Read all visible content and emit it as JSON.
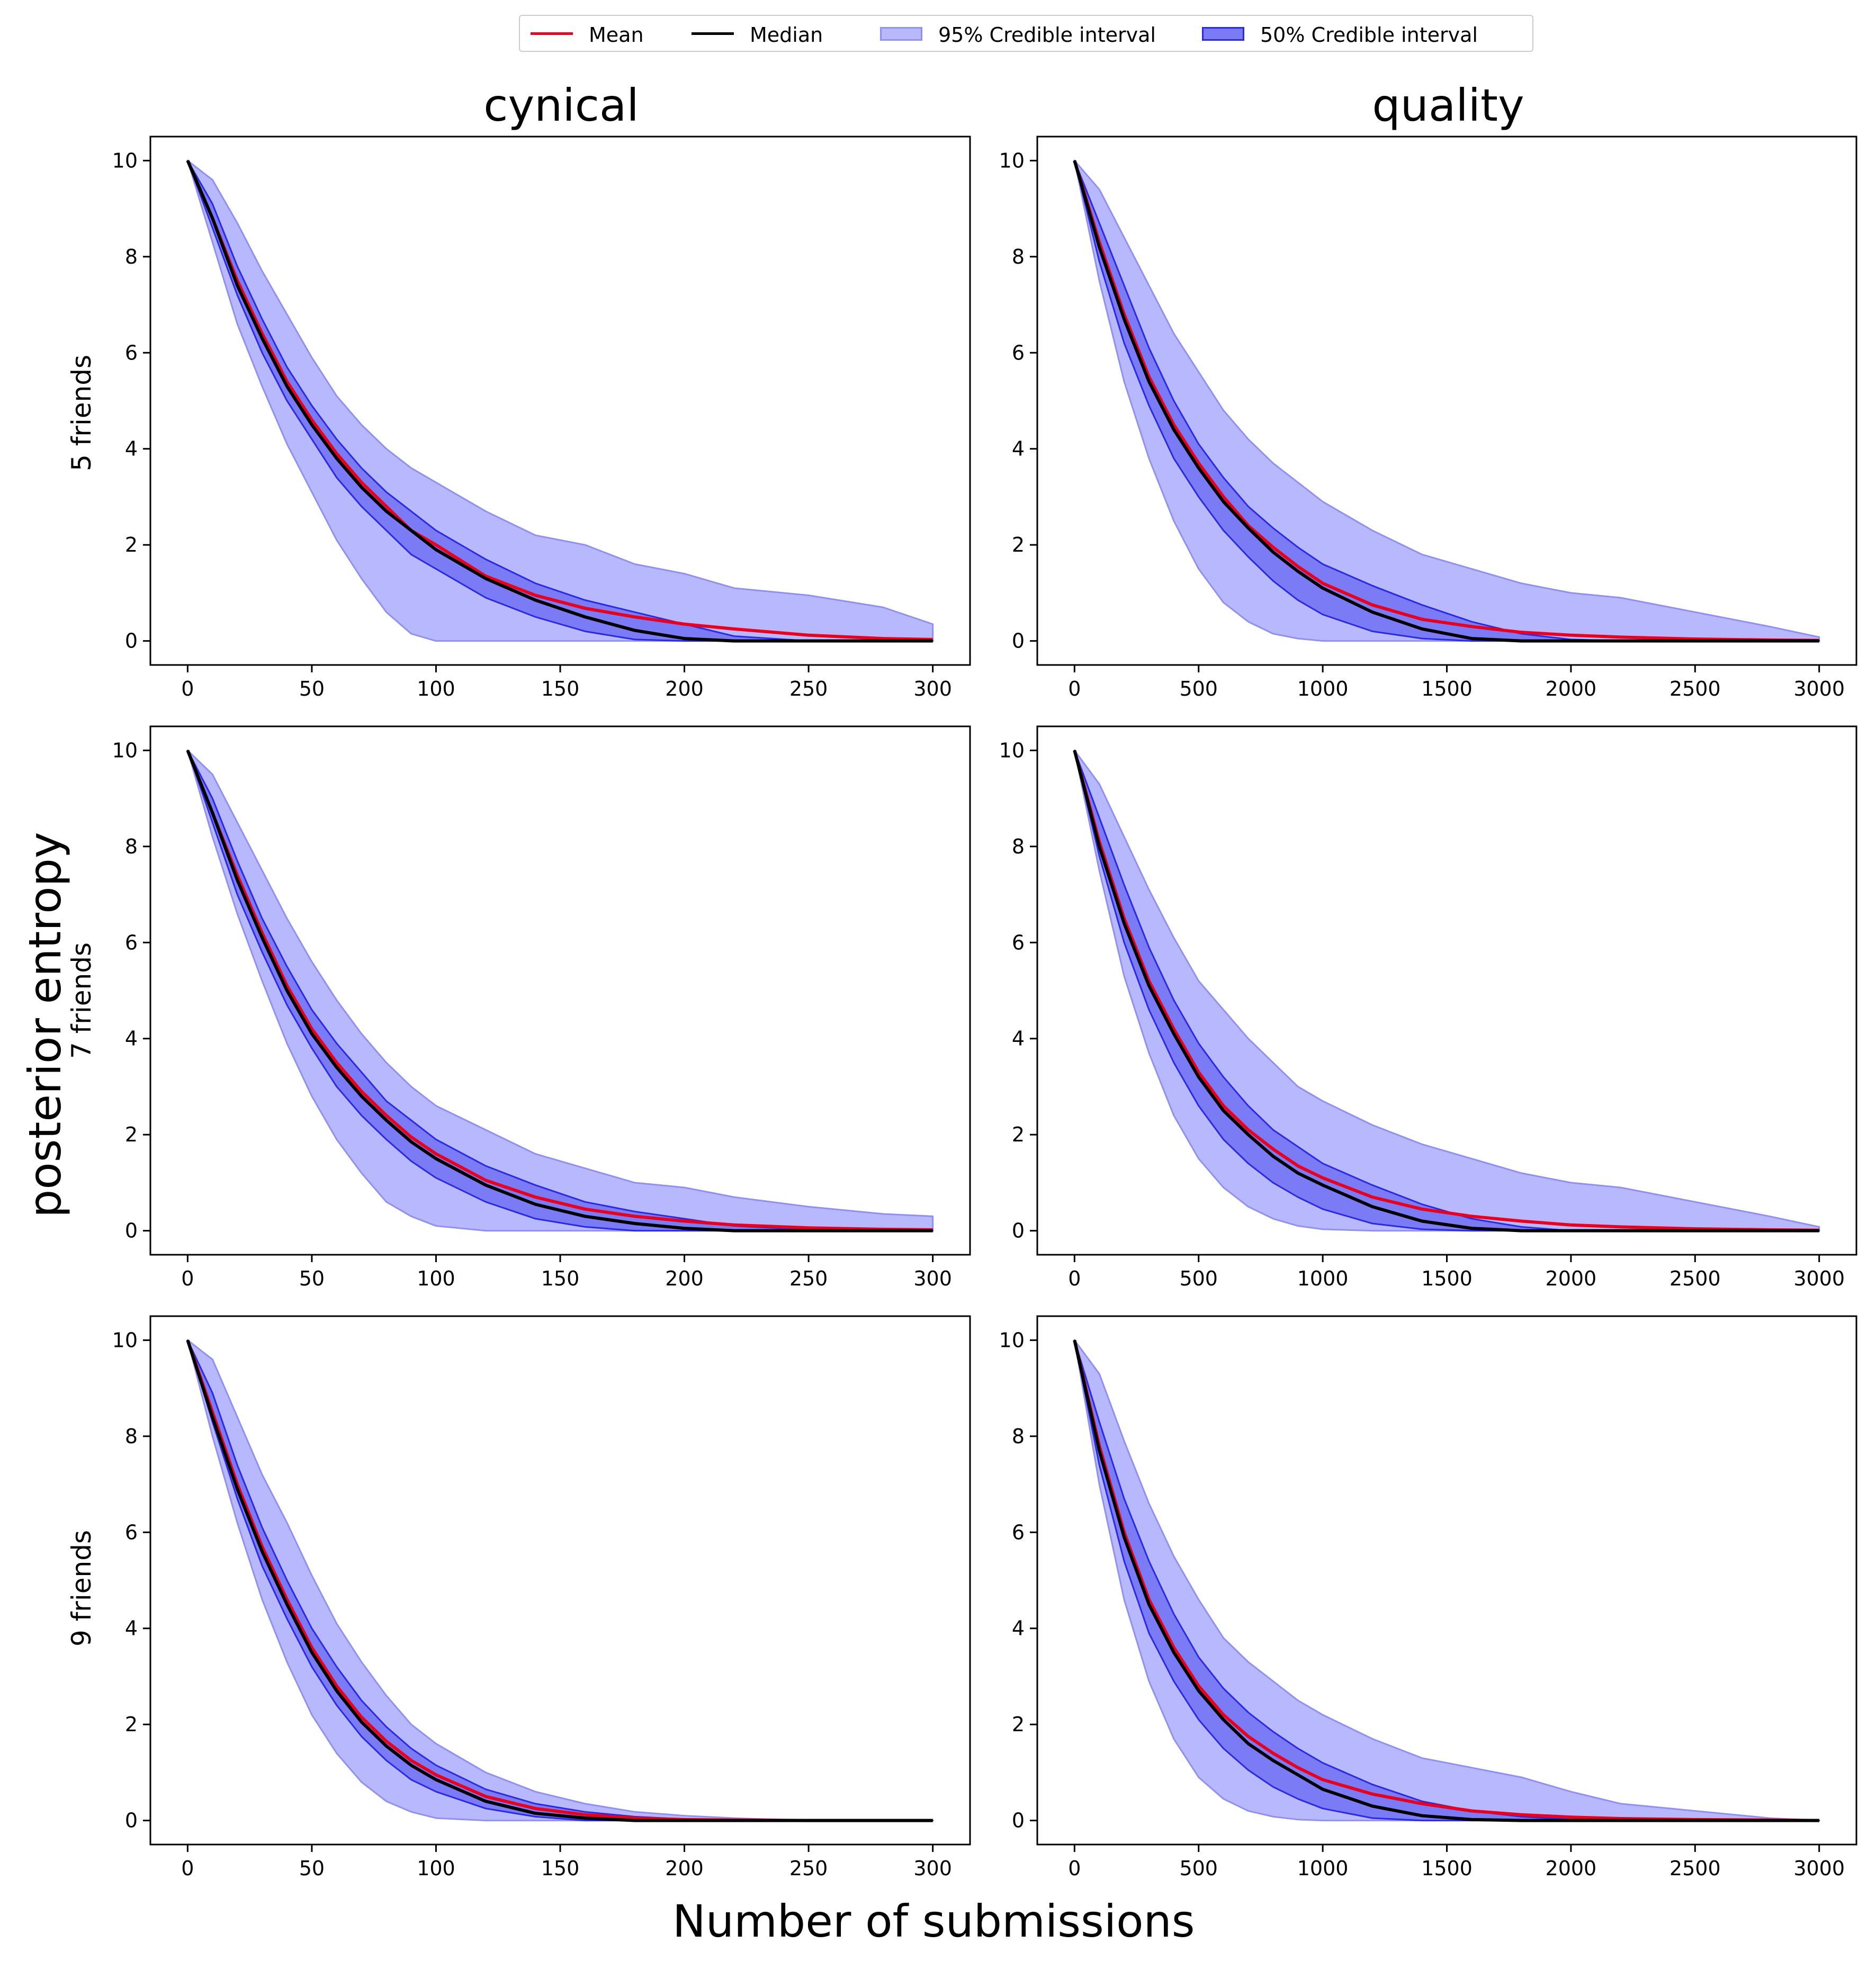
{
  "legend": {
    "mean_label": "Mean",
    "median_label": "Median",
    "ci95_label": "95% Credible interval",
    "ci50_label": "50% Credible interval"
  },
  "columns": [
    "cynical",
    "quality"
  ],
  "rows": [
    "5 friends",
    "7 friends",
    "9 friends"
  ],
  "ylabel": "posterior entropy",
  "xlabel": "Number of submissions",
  "colors": {
    "mean": "#e8001c",
    "median": "#000000",
    "ci95_fill": "#b8b8ff",
    "ci95_edge": "#9090f0",
    "ci50_fill": "#7b7bf6",
    "ci50_edge": "#2a2ae6"
  },
  "chart_data": [
    {
      "type": "area",
      "title": "",
      "column": "cynical",
      "row": "5 friends",
      "xlim": [
        -15,
        315
      ],
      "ylim": [
        -0.5,
        10.5
      ],
      "xticks": [
        0,
        50,
        100,
        150,
        200,
        250,
        300
      ],
      "yticks": [
        0,
        2,
        4,
        6,
        8,
        10
      ],
      "x": [
        0,
        10,
        20,
        30,
        40,
        50,
        60,
        70,
        80,
        90,
        100,
        120,
        140,
        160,
        180,
        200,
        220,
        250,
        280,
        300
      ],
      "mean": [
        10.0,
        8.8,
        7.5,
        6.4,
        5.4,
        4.6,
        3.9,
        3.3,
        2.8,
        2.3,
        2.0,
        1.35,
        0.95,
        0.68,
        0.5,
        0.35,
        0.25,
        0.12,
        0.05,
        0.03
      ],
      "median": [
        10.0,
        8.8,
        7.4,
        6.3,
        5.3,
        4.5,
        3.8,
        3.2,
        2.7,
        2.3,
        1.9,
        1.3,
        0.85,
        0.5,
        0.22,
        0.05,
        0.0,
        0.0,
        0.0,
        0.0
      ],
      "ci95_low": [
        10.0,
        8.3,
        6.6,
        5.3,
        4.1,
        3.1,
        2.1,
        1.3,
        0.6,
        0.15,
        0.0,
        0.0,
        0.0,
        0.0,
        0.0,
        0.0,
        0.0,
        0.0,
        0.0,
        0.0
      ],
      "ci95_high": [
        10.0,
        9.6,
        8.7,
        7.7,
        6.8,
        5.9,
        5.1,
        4.5,
        4.0,
        3.6,
        3.3,
        2.7,
        2.2,
        2.0,
        1.6,
        1.4,
        1.1,
        0.95,
        0.7,
        0.35
      ],
      "ci50_low": [
        10.0,
        8.6,
        7.2,
        6.0,
        5.0,
        4.2,
        3.4,
        2.8,
        2.3,
        1.8,
        1.5,
        0.9,
        0.5,
        0.2,
        0.03,
        0.0,
        0.0,
        0.0,
        0.0,
        0.0
      ],
      "ci50_high": [
        10.0,
        9.1,
        7.8,
        6.7,
        5.7,
        4.9,
        4.2,
        3.6,
        3.1,
        2.7,
        2.3,
        1.7,
        1.2,
        0.85,
        0.6,
        0.35,
        0.1,
        0.0,
        0.0,
        0.0
      ]
    },
    {
      "type": "area",
      "title": "",
      "column": "quality",
      "row": "5 friends",
      "xlim": [
        -150,
        3150
      ],
      "ylim": [
        -0.5,
        10.5
      ],
      "xticks": [
        0,
        500,
        1000,
        1500,
        2000,
        2500,
        3000
      ],
      "yticks": [
        0,
        2,
        4,
        6,
        8,
        10
      ],
      "x": [
        0,
        100,
        200,
        300,
        400,
        500,
        600,
        700,
        800,
        900,
        1000,
        1200,
        1400,
        1600,
        1800,
        2000,
        2200,
        2500,
        2800,
        3000
      ],
      "mean": [
        10.0,
        8.3,
        6.8,
        5.5,
        4.5,
        3.7,
        3.0,
        2.4,
        1.95,
        1.55,
        1.2,
        0.75,
        0.45,
        0.3,
        0.18,
        0.12,
        0.08,
        0.04,
        0.02,
        0.01
      ],
      "median": [
        10.0,
        8.2,
        6.7,
        5.4,
        4.4,
        3.6,
        2.9,
        2.35,
        1.85,
        1.45,
        1.1,
        0.6,
        0.25,
        0.05,
        0.0,
        0.0,
        0.0,
        0.0,
        0.0,
        0.0
      ],
      "ci95_low": [
        10.0,
        7.5,
        5.4,
        3.8,
        2.5,
        1.5,
        0.8,
        0.4,
        0.15,
        0.05,
        0.0,
        0.0,
        0.0,
        0.0,
        0.0,
        0.0,
        0.0,
        0.0,
        0.0,
        0.0
      ],
      "ci95_high": [
        10.0,
        9.4,
        8.4,
        7.4,
        6.4,
        5.6,
        4.8,
        4.2,
        3.7,
        3.3,
        2.9,
        2.3,
        1.8,
        1.5,
        1.2,
        1.0,
        0.9,
        0.6,
        0.3,
        0.08
      ],
      "ci50_low": [
        10.0,
        7.9,
        6.2,
        4.9,
        3.8,
        3.0,
        2.3,
        1.75,
        1.25,
        0.85,
        0.55,
        0.2,
        0.05,
        0.0,
        0.0,
        0.0,
        0.0,
        0.0,
        0.0,
        0.0
      ],
      "ci50_high": [
        10.0,
        8.7,
        7.4,
        6.1,
        5.0,
        4.1,
        3.4,
        2.8,
        2.35,
        1.95,
        1.6,
        1.15,
        0.75,
        0.4,
        0.15,
        0.03,
        0.0,
        0.0,
        0.0,
        0.0
      ]
    },
    {
      "type": "area",
      "title": "",
      "column": "cynical",
      "row": "7 friends",
      "xlim": [
        -15,
        315
      ],
      "ylim": [
        -0.5,
        10.5
      ],
      "xticks": [
        0,
        50,
        100,
        150,
        200,
        250,
        300
      ],
      "yticks": [
        0,
        2,
        4,
        6,
        8,
        10
      ],
      "x": [
        0,
        10,
        20,
        30,
        40,
        50,
        60,
        70,
        80,
        90,
        100,
        120,
        140,
        160,
        180,
        200,
        220,
        250,
        280,
        300
      ],
      "mean": [
        10.0,
        8.7,
        7.4,
        6.2,
        5.1,
        4.2,
        3.5,
        2.9,
        2.4,
        1.95,
        1.6,
        1.05,
        0.7,
        0.45,
        0.3,
        0.2,
        0.12,
        0.06,
        0.03,
        0.02
      ],
      "median": [
        10.0,
        8.7,
        7.3,
        6.1,
        5.0,
        4.1,
        3.4,
        2.8,
        2.3,
        1.85,
        1.5,
        0.95,
        0.55,
        0.3,
        0.15,
        0.05,
        0.0,
        0.0,
        0.0,
        0.0
      ],
      "ci95_low": [
        10.0,
        8.2,
        6.6,
        5.2,
        3.9,
        2.8,
        1.9,
        1.2,
        0.6,
        0.3,
        0.1,
        0.0,
        0.0,
        0.0,
        0.0,
        0.0,
        0.0,
        0.0,
        0.0,
        0.0
      ],
      "ci95_high": [
        10.0,
        9.5,
        8.5,
        7.5,
        6.5,
        5.6,
        4.8,
        4.1,
        3.5,
        3.0,
        2.6,
        2.1,
        1.6,
        1.3,
        1.0,
        0.9,
        0.7,
        0.5,
        0.35,
        0.3
      ],
      "ci50_low": [
        10.0,
        8.5,
        7.0,
        5.8,
        4.7,
        3.8,
        3.0,
        2.4,
        1.9,
        1.45,
        1.1,
        0.6,
        0.25,
        0.08,
        0.0,
        0.0,
        0.0,
        0.0,
        0.0,
        0.0
      ],
      "ci50_high": [
        10.0,
        9.0,
        7.7,
        6.5,
        5.5,
        4.6,
        3.9,
        3.3,
        2.7,
        2.3,
        1.9,
        1.35,
        0.95,
        0.6,
        0.4,
        0.25,
        0.1,
        0.02,
        0.0,
        0.0
      ]
    },
    {
      "type": "area",
      "title": "",
      "column": "quality",
      "row": "7 friends",
      "xlim": [
        -150,
        3150
      ],
      "ylim": [
        -0.5,
        10.5
      ],
      "xticks": [
        0,
        500,
        1000,
        1500,
        2000,
        2500,
        3000
      ],
      "yticks": [
        0,
        2,
        4,
        6,
        8,
        10
      ],
      "x": [
        0,
        100,
        200,
        300,
        400,
        500,
        600,
        700,
        800,
        900,
        1000,
        1200,
        1400,
        1600,
        1800,
        2000,
        2200,
        2500,
        2800,
        3000
      ],
      "mean": [
        10.0,
        8.1,
        6.5,
        5.2,
        4.2,
        3.3,
        2.6,
        2.1,
        1.7,
        1.35,
        1.1,
        0.7,
        0.45,
        0.3,
        0.2,
        0.12,
        0.08,
        0.04,
        0.02,
        0.01
      ],
      "median": [
        10.0,
        8.0,
        6.4,
        5.1,
        4.1,
        3.2,
        2.5,
        2.0,
        1.55,
        1.2,
        0.95,
        0.5,
        0.2,
        0.05,
        0.0,
        0.0,
        0.0,
        0.0,
        0.0,
        0.0
      ],
      "ci95_low": [
        10.0,
        7.5,
        5.3,
        3.7,
        2.4,
        1.5,
        0.9,
        0.5,
        0.25,
        0.1,
        0.03,
        0.0,
        0.0,
        0.0,
        0.0,
        0.0,
        0.0,
        0.0,
        0.0,
        0.0
      ],
      "ci95_high": [
        10.0,
        9.3,
        8.2,
        7.1,
        6.1,
        5.2,
        4.6,
        4.0,
        3.5,
        3.0,
        2.7,
        2.2,
        1.8,
        1.5,
        1.2,
        1.0,
        0.9,
        0.6,
        0.3,
        0.08
      ],
      "ci50_low": [
        10.0,
        7.8,
        6.0,
        4.6,
        3.5,
        2.6,
        1.9,
        1.4,
        1.0,
        0.7,
        0.45,
        0.15,
        0.03,
        0.0,
        0.0,
        0.0,
        0.0,
        0.0,
        0.0,
        0.0
      ],
      "ci50_high": [
        10.0,
        8.6,
        7.2,
        5.9,
        4.8,
        3.9,
        3.2,
        2.6,
        2.1,
        1.75,
        1.4,
        0.95,
        0.55,
        0.25,
        0.08,
        0.0,
        0.0,
        0.0,
        0.0,
        0.0
      ]
    },
    {
      "type": "area",
      "title": "",
      "column": "cynical",
      "row": "9 friends",
      "xlim": [
        -15,
        315
      ],
      "ylim": [
        -0.5,
        10.5
      ],
      "xticks": [
        0,
        50,
        100,
        150,
        200,
        250,
        300
      ],
      "yticks": [
        0,
        2,
        4,
        6,
        8,
        10
      ],
      "x": [
        0,
        10,
        20,
        30,
        40,
        50,
        60,
        70,
        80,
        90,
        100,
        120,
        140,
        160,
        180,
        200,
        220,
        250,
        280,
        300
      ],
      "mean": [
        10.0,
        8.5,
        7.0,
        5.7,
        4.6,
        3.6,
        2.8,
        2.15,
        1.65,
        1.25,
        0.95,
        0.5,
        0.25,
        0.12,
        0.05,
        0.02,
        0.01,
        0.0,
        0.0,
        0.0
      ],
      "median": [
        10.0,
        8.4,
        6.9,
        5.6,
        4.5,
        3.5,
        2.7,
        2.05,
        1.55,
        1.15,
        0.85,
        0.4,
        0.15,
        0.05,
        0.0,
        0.0,
        0.0,
        0.0,
        0.0,
        0.0
      ],
      "ci95_low": [
        10.0,
        8.0,
        6.2,
        4.6,
        3.3,
        2.2,
        1.4,
        0.8,
        0.4,
        0.18,
        0.05,
        0.0,
        0.0,
        0.0,
        0.0,
        0.0,
        0.0,
        0.0,
        0.0,
        0.0
      ],
      "ci95_high": [
        10.0,
        9.6,
        8.4,
        7.2,
        6.2,
        5.1,
        4.1,
        3.3,
        2.6,
        2.0,
        1.6,
        1.0,
        0.6,
        0.35,
        0.18,
        0.1,
        0.05,
        0.0,
        0.0,
        0.0
      ],
      "ci50_low": [
        10.0,
        8.3,
        6.7,
        5.3,
        4.2,
        3.2,
        2.4,
        1.75,
        1.25,
        0.85,
        0.6,
        0.25,
        0.08,
        0.0,
        0.0,
        0.0,
        0.0,
        0.0,
        0.0,
        0.0
      ],
      "ci50_high": [
        10.0,
        8.9,
        7.4,
        6.1,
        5.0,
        4.0,
        3.2,
        2.5,
        1.95,
        1.5,
        1.15,
        0.65,
        0.35,
        0.18,
        0.08,
        0.03,
        0.0,
        0.0,
        0.0,
        0.0
      ]
    },
    {
      "type": "area",
      "title": "",
      "column": "quality",
      "row": "9 friends",
      "xlim": [
        -150,
        3150
      ],
      "ylim": [
        -0.5,
        10.5
      ],
      "xticks": [
        0,
        500,
        1000,
        1500,
        2000,
        2500,
        3000
      ],
      "yticks": [
        0,
        2,
        4,
        6,
        8,
        10
      ],
      "x": [
        0,
        100,
        200,
        300,
        400,
        500,
        600,
        700,
        800,
        900,
        1000,
        1200,
        1400,
        1600,
        1800,
        2000,
        2200,
        2500,
        2800,
        3000
      ],
      "mean": [
        10.0,
        7.8,
        6.0,
        4.6,
        3.6,
        2.8,
        2.2,
        1.75,
        1.4,
        1.1,
        0.85,
        0.55,
        0.35,
        0.2,
        0.12,
        0.07,
        0.04,
        0.02,
        0.01,
        0.0
      ],
      "median": [
        10.0,
        7.7,
        5.9,
        4.5,
        3.5,
        2.7,
        2.1,
        1.6,
        1.25,
        0.95,
        0.65,
        0.3,
        0.1,
        0.02,
        0.0,
        0.0,
        0.0,
        0.0,
        0.0,
        0.0
      ],
      "ci95_low": [
        10.0,
        7.0,
        4.6,
        2.9,
        1.7,
        0.9,
        0.45,
        0.2,
        0.08,
        0.02,
        0.0,
        0.0,
        0.0,
        0.0,
        0.0,
        0.0,
        0.0,
        0.0,
        0.0,
        0.0
      ],
      "ci95_high": [
        10.0,
        9.3,
        7.9,
        6.6,
        5.5,
        4.6,
        3.8,
        3.3,
        2.9,
        2.5,
        2.2,
        1.7,
        1.3,
        1.1,
        0.9,
        0.6,
        0.35,
        0.2,
        0.05,
        0.0
      ],
      "ci50_low": [
        10.0,
        7.4,
        5.4,
        3.9,
        2.9,
        2.1,
        1.5,
        1.05,
        0.7,
        0.45,
        0.25,
        0.05,
        0.0,
        0.0,
        0.0,
        0.0,
        0.0,
        0.0,
        0.0,
        0.0
      ],
      "ci50_high": [
        10.0,
        8.3,
        6.7,
        5.4,
        4.3,
        3.4,
        2.75,
        2.25,
        1.85,
        1.5,
        1.2,
        0.75,
        0.4,
        0.2,
        0.08,
        0.02,
        0.0,
        0.0,
        0.0,
        0.0
      ]
    }
  ]
}
